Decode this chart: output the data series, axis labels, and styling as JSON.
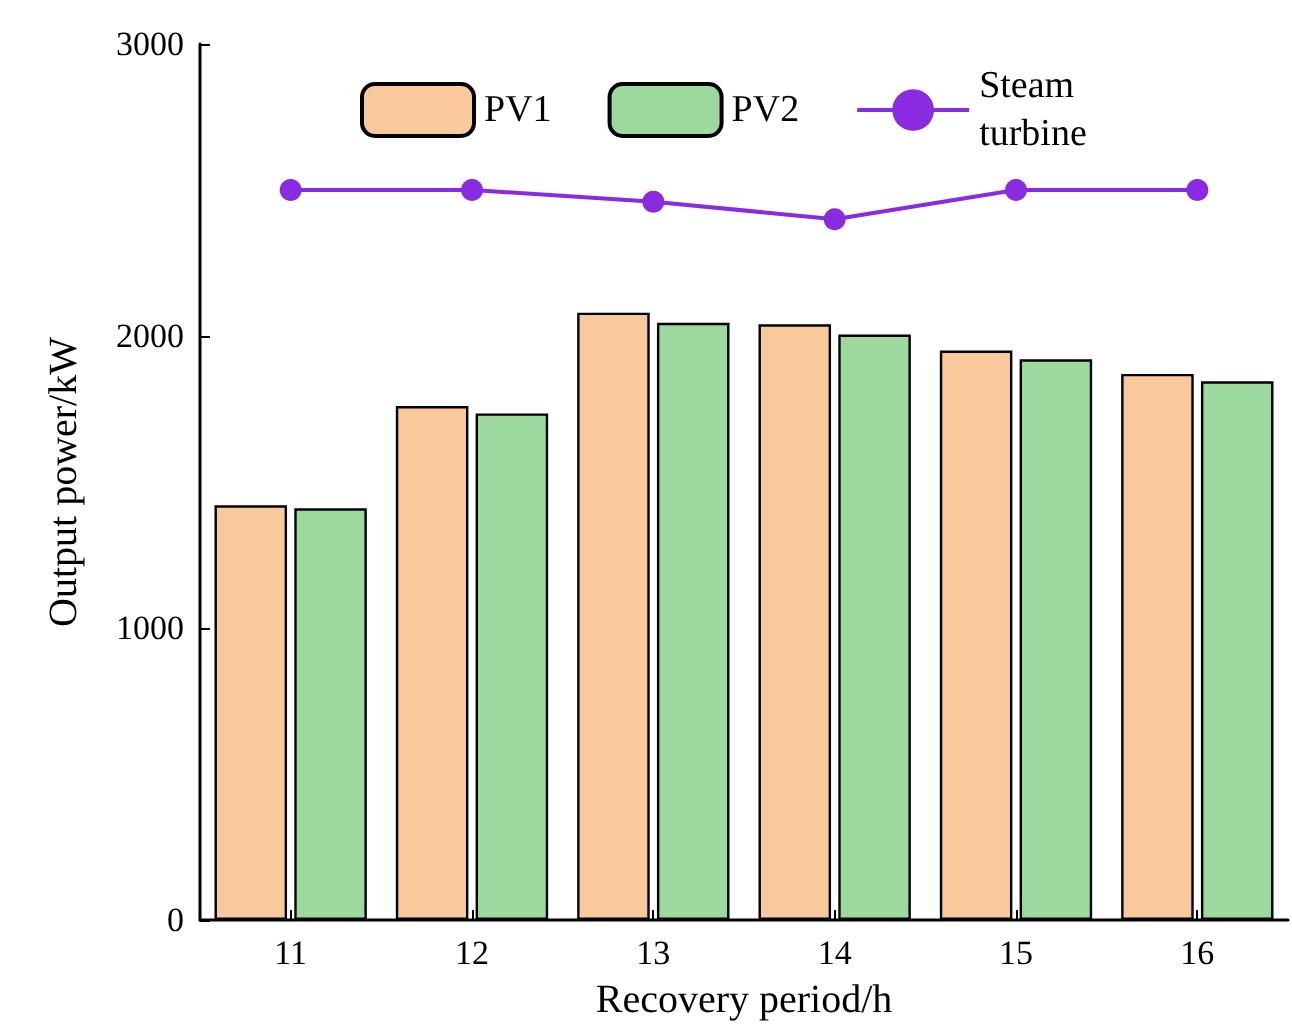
{
  "chart_data": {
    "type": "bar",
    "xlabel": "Recovery period/h",
    "ylabel": "Output power/kW",
    "categories": [
      "11",
      "12",
      "13",
      "14",
      "15",
      "16"
    ],
    "series": [
      {
        "name": "PV1",
        "color": "#f9c89b",
        "values": [
          1420,
          1760,
          2080,
          2040,
          1950,
          1870
        ]
      },
      {
        "name": "PV2",
        "color": "#9dd89e",
        "values": [
          1410,
          1735,
          2045,
          2005,
          1920,
          1845
        ]
      },
      {
        "name": "Steam turbine",
        "type": "line",
        "color": "#8a2be2",
        "values": [
          2500,
          2500,
          2460,
          2400,
          2500,
          2500
        ]
      }
    ],
    "ylim": [
      0,
      3000
    ],
    "yticks": [
      0,
      1000,
      2000,
      3000
    ],
    "grid": false,
    "legend": "top",
    "marker": "circle"
  }
}
